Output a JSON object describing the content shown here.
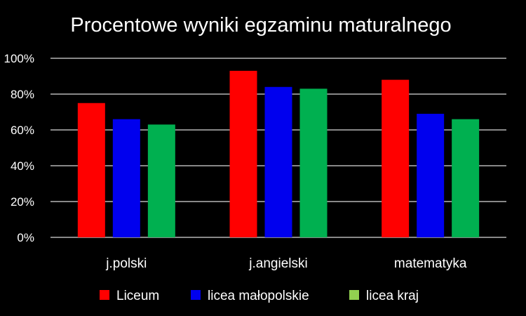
{
  "chart_data": {
    "type": "bar",
    "title": "Procentowe wyniki egzaminu maturalnego",
    "categories": [
      "j.polski",
      "j.angielski",
      "matematyka"
    ],
    "series": [
      {
        "name": "Liceum",
        "color": "#ff0000",
        "values": [
          75,
          93,
          88
        ]
      },
      {
        "name": "licea małopolskie",
        "color": "#0000ee",
        "values": [
          66,
          84,
          69
        ]
      },
      {
        "name": "licea kraj",
        "color": "#00b050",
        "values": [
          63,
          83,
          66
        ]
      }
    ],
    "legend_colors": [
      "#ff0000",
      "#0000ee",
      "#92d050"
    ],
    "y_ticks": [
      "0%",
      "20%",
      "40%",
      "60%",
      "80%",
      "100%"
    ],
    "ylim": [
      0,
      100
    ],
    "grid": true,
    "legend_position": "bottom"
  }
}
